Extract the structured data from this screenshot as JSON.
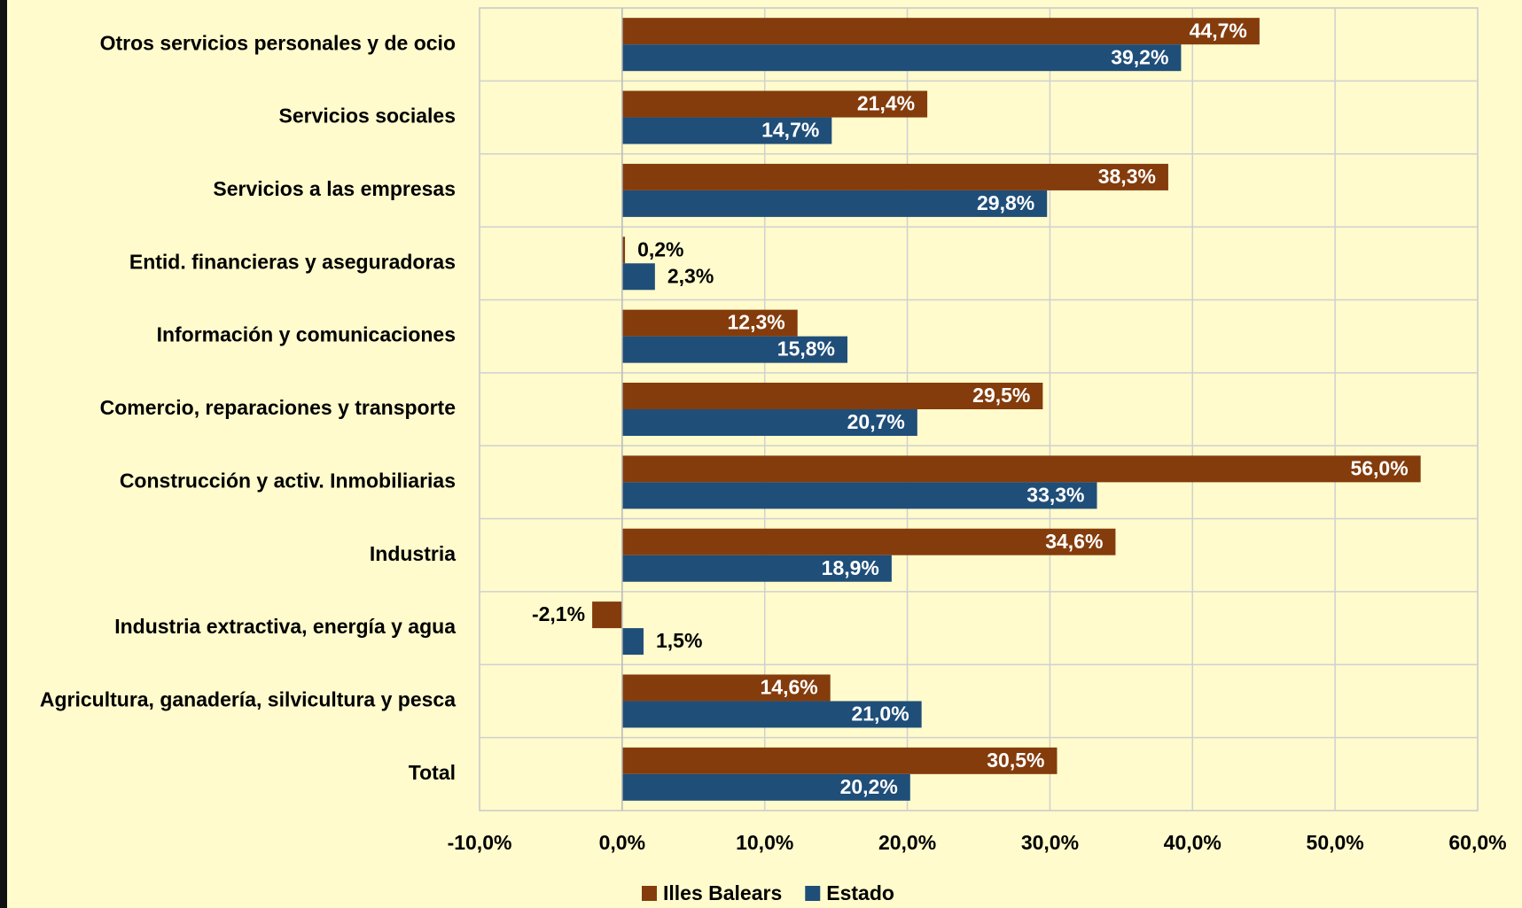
{
  "chart_data": {
    "type": "hbar",
    "categories": [
      "Otros servicios personales y de ocio",
      "Servicios sociales",
      "Servicios a las empresas",
      "Entid. financieras y aseguradoras",
      "Información y comunicaciones",
      "Comercio, reparaciones y transporte",
      "Construcción y activ. Inmobiliarias",
      "Industria",
      "Industria extractiva, energía y agua",
      "Agricultura, ganadería, silvicultura y pesca",
      "Total"
    ],
    "series": [
      {
        "name": "Illes Balears",
        "color": "#843c0c",
        "values": [
          44.7,
          21.4,
          38.3,
          0.2,
          12.3,
          29.5,
          56.0,
          34.6,
          -2.1,
          14.6,
          30.5
        ],
        "value_labels": [
          "44,7%",
          "21,4%",
          "38,3%",
          "0,2%",
          "12,3%",
          "29,5%",
          "56,0%",
          "34,6%",
          "-2,1%",
          "14,6%",
          "30,5%"
        ]
      },
      {
        "name": "Estado",
        "color": "#1f4e79",
        "values": [
          39.2,
          14.7,
          29.8,
          2.3,
          15.8,
          20.7,
          33.3,
          18.9,
          1.5,
          21.0,
          20.2
        ],
        "value_labels": [
          "39,2%",
          "14,7%",
          "29,8%",
          "2,3%",
          "15,8%",
          "20,7%",
          "33,3%",
          "18,9%",
          "1,5%",
          "21,0%",
          "20,2%"
        ]
      }
    ],
    "xlim": [
      -10,
      60
    ],
    "xticks": [
      {
        "value": -10,
        "label": "-10,0%"
      },
      {
        "value": 0,
        "label": "0,0%"
      },
      {
        "value": 10,
        "label": "10,0%"
      },
      {
        "value": 20,
        "label": "20,0%"
      },
      {
        "value": 30,
        "label": "30,0%"
      },
      {
        "value": 40,
        "label": "40,0%"
      },
      {
        "value": 50,
        "label": "50,0%"
      },
      {
        "value": 60,
        "label": "60,0%"
      }
    ],
    "grid": true,
    "legend": "bottom"
  }
}
